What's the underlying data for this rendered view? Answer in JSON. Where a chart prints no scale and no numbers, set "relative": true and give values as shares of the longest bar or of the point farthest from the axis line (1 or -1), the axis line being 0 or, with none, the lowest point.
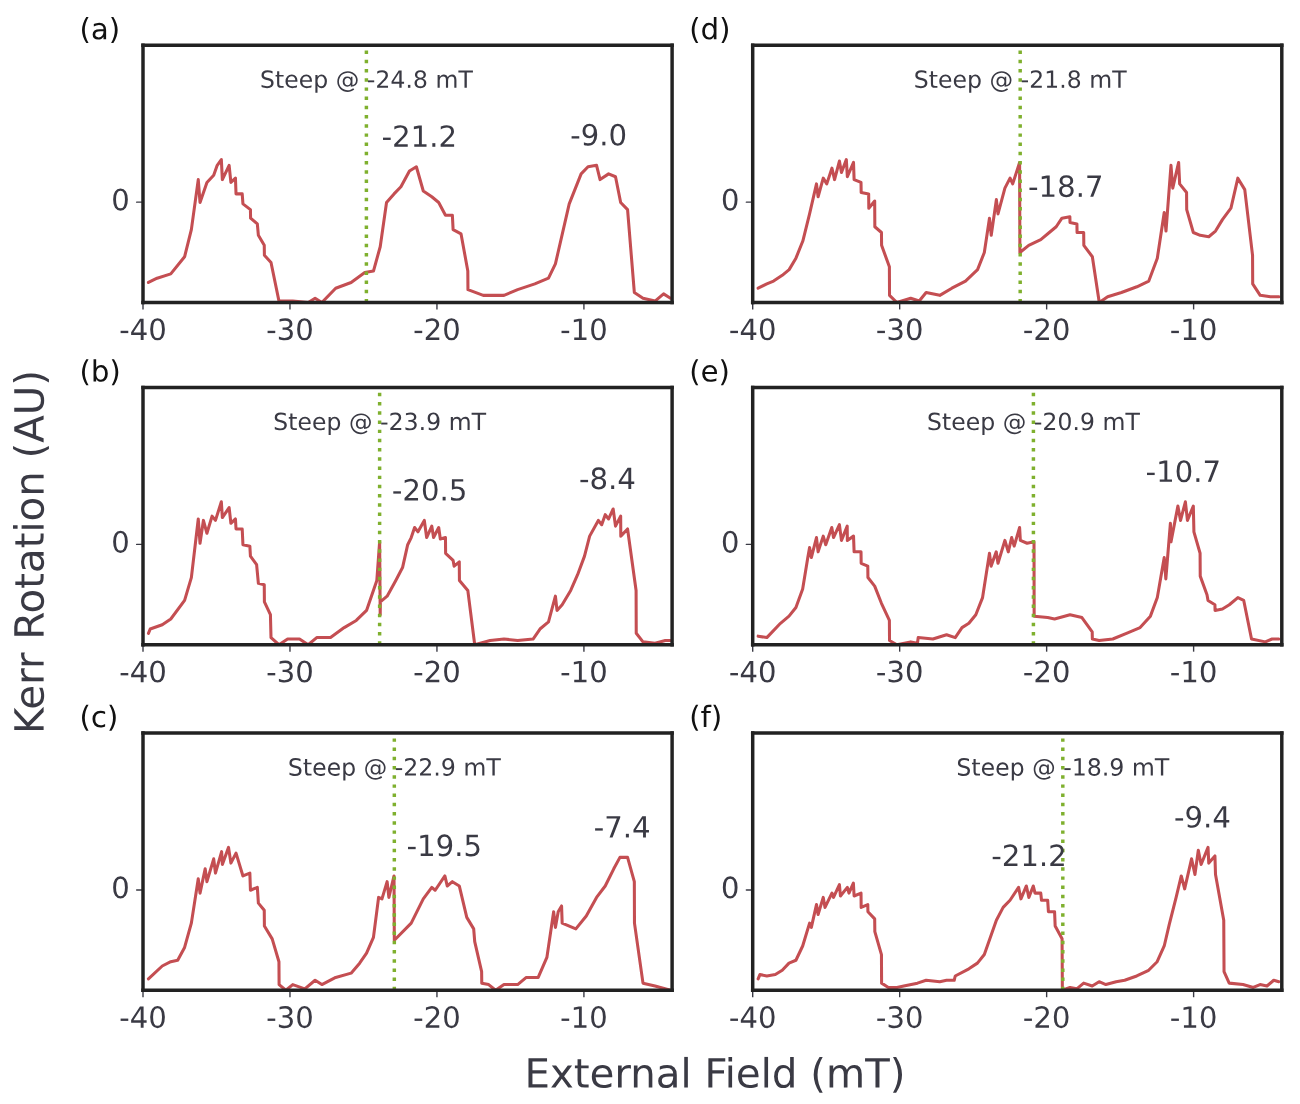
{
  "chart_data": [
    {
      "type": "line",
      "title": "(a)",
      "ylabel": "Kerr Rotation (AU)",
      "xlabel": "External Field (mT)",
      "relative": true,
      "xlim": [
        -40,
        -4
      ],
      "xticks": [
        -40,
        -30,
        -20,
        -10
      ],
      "grid": false,
      "legend": false,
      "ref_lines": [
        {
          "axis": "x",
          "value": -24.8,
          "label": "Steep @ -24.8 mT",
          "color": "#7fb02e",
          "line_style": "dotted"
        }
      ],
      "annotations": [
        "0",
        {
          "text": "-21.2",
          "x": -21.2,
          "y": 0.95
        },
        {
          "text": "-9.0",
          "x": -9.0,
          "y": 0.96
        }
      ],
      "series": [
        {
          "color": "#c44e52",
          "x": [
            -39.63,
            -39.04,
            -38.11,
            -37.17,
            -36.71,
            -36.24,
            -36.12,
            -35.65,
            -35.19,
            -34.95,
            -34.67,
            -34.6,
            -34.14,
            -34.02,
            -33.71,
            -33.67,
            -33.25,
            -33.2,
            -32.69,
            -32.68,
            -32.22,
            -32.15,
            -31.75,
            -31.74,
            -31.29,
            -30.75,
            -29.81,
            -28.76,
            -28.29,
            -27.83,
            -26.89,
            -25.84,
            -24.91,
            -24.32,
            -23.86,
            -23.43,
            -22.92,
            -22.45,
            -21.87,
            -21.4,
            -20.93,
            -20.35,
            -19.88,
            -19.42,
            -18.95,
            -18.9,
            -18.36,
            -17.9,
            -17.89,
            -16.85,
            -15.44,
            -14.51,
            -13.34,
            -12.41,
            -11.94,
            -11.0,
            -10.19,
            -9.72,
            -9.14,
            -8.9,
            -8.32,
            -7.85,
            -7.5,
            -7.03,
            -6.57,
            -5.98,
            -5.16,
            -4.58,
            -4.11
          ],
          "values": [
            0.14,
            0.17,
            0.2,
            0.32,
            0.51,
            0.86,
            0.7,
            0.84,
            0.89,
            0.96,
            1,
            0.86,
            0.96,
            0.84,
            0.87,
            0.76,
            0.76,
            0.69,
            0.65,
            0.59,
            0.55,
            0.47,
            0.4,
            0.33,
            0.28,
            0.01,
            0.01,
            0,
            0.03,
            0,
            0.1,
            0.14,
            0.21,
            0.22,
            0.39,
            0.7,
            0.76,
            0.81,
            0.92,
            0.95,
            0.78,
            0.74,
            0.7,
            0.61,
            0.61,
            0.51,
            0.48,
            0.22,
            0.09,
            0.05,
            0.05,
            0.09,
            0.13,
            0.17,
            0.27,
            0.69,
            0.9,
            0.95,
            0.96,
            0.86,
            0.9,
            0.88,
            0.7,
            0.65,
            0.07,
            0.03,
            0.01,
            0.06,
            0.03
          ]
        }
      ]
    },
    {
      "type": "line",
      "title": "(d)",
      "relative": true,
      "xlim": [
        -40,
        -4
      ],
      "xticks": [
        -40,
        -30,
        -20,
        -10
      ],
      "grid": false,
      "legend": false,
      "ref_lines": [
        {
          "axis": "x",
          "value": -21.8,
          "label": "Steep @ -21.8 mT",
          "color": "#7fb02e",
          "line_style": "dotted"
        }
      ],
      "annotations": [
        "0",
        {
          "text": "-18.7",
          "x": -18.7,
          "y": 0.6
        }
      ],
      "series": [
        {
          "color": "#c44e52",
          "x": [
            -39.63,
            -39.04,
            -38.58,
            -37.99,
            -37.52,
            -37.06,
            -36.59,
            -36.13,
            -35.66,
            -35.55,
            -35.2,
            -34.96,
            -34.61,
            -34.43,
            -34.1,
            -33.96,
            -33.63,
            -33.56,
            -33.14,
            -33.1,
            -32.63,
            -32.62,
            -32.11,
            -32.1,
            -31.7,
            -31.69,
            -31.24,
            -31.23,
            -30.7,
            -30.69,
            -30.19,
            -29.25,
            -28.67,
            -28.2,
            -27.27,
            -26.45,
            -25.52,
            -24.7,
            -24.24,
            -23.89,
            -23.77,
            -23.42,
            -23.31,
            -22.84,
            -22.49,
            -22.31,
            -21.84,
            -21.82,
            -21.22,
            -20.4,
            -19.82,
            -19.35,
            -18.96,
            -18.42,
            -18.41,
            -17.94,
            -17.93,
            -17.48,
            -17.47,
            -16.89,
            -16.42,
            -15.85,
            -14.91,
            -13.86,
            -13.05,
            -12.47,
            -12.0,
            -11.88,
            -11.54,
            -11.42,
            -11.02,
            -10.95,
            -10.48,
            -10.47,
            -10.02,
            -9.55,
            -8.97,
            -8.51,
            -8.04,
            -7.46,
            -6.99,
            -6.52,
            -5.99,
            -5.98,
            -5.47,
            -4.77,
            -4.19
          ],
          "values": [
            0.1,
            0.13,
            0.15,
            0.19,
            0.23,
            0.31,
            0.43,
            0.62,
            0.83,
            0.74,
            0.87,
            0.83,
            0.94,
            0.86,
            0.99,
            0.91,
            1,
            0.88,
            0.98,
            0.86,
            0.84,
            0.77,
            0.76,
            0.66,
            0.71,
            0.53,
            0.49,
            0.4,
            0.25,
            0.05,
            0,
            0.03,
            0.01,
            0.07,
            0.05,
            0.1,
            0.15,
            0.23,
            0.35,
            0.59,
            0.47,
            0.72,
            0.62,
            0.8,
            0.87,
            0.83,
            0.98,
            0.35,
            0.4,
            0.44,
            0.49,
            0.53,
            0.59,
            0.6,
            0.56,
            0.55,
            0.49,
            0.49,
            0.4,
            0.32,
            0,
            0.04,
            0.07,
            0.11,
            0.15,
            0.31,
            0.63,
            0.5,
            0.96,
            0.8,
            0.98,
            0.83,
            0.77,
            0.65,
            0.49,
            0.47,
            0.46,
            0.5,
            0.58,
            0.66,
            0.87,
            0.79,
            0.33,
            0.13,
            0.05,
            0.04,
            0.04
          ]
        }
      ]
    },
    {
      "type": "line",
      "title": "(b)",
      "relative": true,
      "xlim": [
        -40,
        -4
      ],
      "xticks": [
        -40,
        -30,
        -20,
        -10
      ],
      "grid": false,
      "legend": false,
      "ref_lines": [
        {
          "axis": "x",
          "value": -23.9,
          "label": "Steep @ -23.9 mT",
          "color": "#7fb02e",
          "line_style": "dotted"
        }
      ],
      "annotations": [
        "0",
        {
          "text": "-20.5",
          "x": -20.5,
          "y": 0.87
        },
        {
          "text": "-8.4",
          "x": -8.4,
          "y": 0.95
        }
      ],
      "series": [
        {
          "color": "#c44e52",
          "x": [
            -39.63,
            -39.51,
            -38.69,
            -38.11,
            -37.17,
            -36.71,
            -36.24,
            -36.12,
            -35.89,
            -35.65,
            -35.3,
            -35.07,
            -34.67,
            -34.6,
            -34.14,
            -34.02,
            -33.71,
            -33.67,
            -33.25,
            -33.2,
            -32.73,
            -32.69,
            -32.27,
            -32.15,
            -31.75,
            -31.74,
            -31.33,
            -31.29,
            -30.75,
            -30.16,
            -29.35,
            -28.76,
            -28.18,
            -27.24,
            -26.31,
            -25.49,
            -24.79,
            -24.09,
            -23.9,
            -23.86,
            -23.85,
            -23.39,
            -22.8,
            -22.34,
            -21.99,
            -21.75,
            -21.52,
            -21.29,
            -20.86,
            -20.7,
            -20.35,
            -20.23,
            -19.88,
            -19.77,
            -19.42,
            -19.41,
            -18.9,
            -18.83,
            -18.48,
            -18.47,
            -17.9,
            -17.43,
            -16.38,
            -15.44,
            -14.51,
            -13.46,
            -12.99,
            -12.41,
            -11.94,
            -11.83,
            -11.48,
            -10.9,
            -10.43,
            -9.96,
            -9.61,
            -9.02,
            -8.79,
            -8.55,
            -8.32,
            -8.01,
            -7.85,
            -7.5,
            -7.49,
            -7.03,
            -6.45,
            -6.44,
            -5.98,
            -5.16,
            -4.46,
            -4.11
          ],
          "values": [
            0.08,
            0.11,
            0.14,
            0.18,
            0.31,
            0.47,
            0.88,
            0.71,
            0.87,
            0.78,
            0.9,
            0.87,
            1,
            0.89,
            0.96,
            0.85,
            0.88,
            0.81,
            0.81,
            0.7,
            0.69,
            0.62,
            0.56,
            0.43,
            0.42,
            0.3,
            0.21,
            0.05,
            0,
            0.04,
            0.04,
            0,
            0.05,
            0.05,
            0.12,
            0.17,
            0.24,
            0.45,
            0.72,
            0.21,
            0.3,
            0.34,
            0.45,
            0.54,
            0.7,
            0.75,
            0.82,
            0.79,
            0.87,
            0.75,
            0.83,
            0.75,
            0.82,
            0.74,
            0.75,
            0.64,
            0.59,
            0.55,
            0.58,
            0.45,
            0.38,
            0,
            0.03,
            0.04,
            0.03,
            0.04,
            0.11,
            0.16,
            0.34,
            0.24,
            0.28,
            0.38,
            0.49,
            0.62,
            0.76,
            0.87,
            0.84,
            0.91,
            0.88,
            0.95,
            0.83,
            0.9,
            0.76,
            0.81,
            0.38,
            0.08,
            0.02,
            0.01,
            0.03,
            0.03
          ]
        }
      ]
    },
    {
      "type": "line",
      "title": "(e)",
      "relative": true,
      "xlim": [
        -40,
        -4
      ],
      "xticks": [
        -40,
        -30,
        -20,
        -10
      ],
      "grid": false,
      "legend": false,
      "ref_lines": [
        {
          "axis": "x",
          "value": -20.9,
          "label": "Steep @ -20.9 mT",
          "color": "#7fb02e",
          "line_style": "dotted"
        }
      ],
      "annotations": [
        "0",
        {
          "text": "-10.7",
          "x": -10.7,
          "y": 1
        }
      ],
      "series": [
        {
          "color": "#c44e52",
          "x": [
            -39.63,
            -39.04,
            -38.11,
            -37.53,
            -37.06,
            -36.6,
            -36.25,
            -36.13,
            -36.01,
            -35.66,
            -35.55,
            -35.2,
            -35.03,
            -34.62,
            -34.5,
            -34.1,
            -33.96,
            -33.57,
            -33.56,
            -33.14,
            -33.1,
            -32.63,
            -32.62,
            -32.17,
            -32.16,
            -31.7,
            -31.24,
            -30.7,
            -30.69,
            -30.19,
            -29.25,
            -28.79,
            -28.74,
            -27.74,
            -26.81,
            -26.22,
            -25.76,
            -25.29,
            -24.82,
            -24.36,
            -23.89,
            -23.78,
            -23.43,
            -23.31,
            -22.84,
            -22.61,
            -22.38,
            -22.21,
            -21.84,
            -21.79,
            -21.33,
            -20.86,
            -20.85,
            -19.93,
            -19.46,
            -18.41,
            -17.6,
            -16.9,
            -16.89,
            -16.43,
            -15.5,
            -14.57,
            -13.64,
            -12.94,
            -12.47,
            -12.0,
            -11.89,
            -11.58,
            -11.54,
            -11.07,
            -10.89,
            -10.56,
            -10.42,
            -10.02,
            -9.98,
            -9.56,
            -9.55,
            -9.09,
            -9.02,
            -8.55,
            -8.54,
            -8.04,
            -7.57,
            -6.99,
            -6.59,
            -6.06,
            -5.12,
            -4.66,
            -4.2
          ],
          "values": [
            0.06,
            0.05,
            0.15,
            0.2,
            0.26,
            0.39,
            0.61,
            0.68,
            0.61,
            0.75,
            0.65,
            0.76,
            0.7,
            0.82,
            0.75,
            0.84,
            0.73,
            0.83,
            0.73,
            0.76,
            0.65,
            0.65,
            0.57,
            0.55,
            0.47,
            0.41,
            0.29,
            0.17,
            0.03,
            0,
            0.02,
            0.01,
            0.05,
            0.04,
            0.07,
            0.05,
            0.12,
            0.15,
            0.21,
            0.33,
            0.64,
            0.55,
            0.65,
            0.57,
            0.73,
            0.65,
            0.75,
            0.69,
            0.82,
            0.73,
            0.71,
            0.72,
            0.2,
            0.19,
            0.18,
            0.21,
            0.19,
            0.09,
            0.04,
            0.03,
            0.04,
            0.08,
            0.12,
            0.2,
            0.33,
            0.61,
            0.46,
            0.85,
            0.72,
            0.97,
            0.87,
            1,
            0.87,
            0.97,
            0.79,
            0.64,
            0.48,
            0.35,
            0.31,
            0.28,
            0.24,
            0.25,
            0.28,
            0.33,
            0.31,
            0.04,
            0.02,
            0.04,
            0.04
          ]
        }
      ]
    },
    {
      "type": "line",
      "title": "(c)",
      "relative": true,
      "xlim": [
        -40,
        -4
      ],
      "xticks": [
        -40,
        -30,
        -20,
        -10
      ],
      "grid": false,
      "legend": false,
      "ref_lines": [
        {
          "axis": "x",
          "value": -22.9,
          "label": "Steep @ -22.9 mT",
          "color": "#7fb02e",
          "line_style": "dotted"
        }
      ],
      "annotations": [
        "0",
        {
          "text": "-19.5",
          "x": -19.5,
          "y": 0.8
        },
        {
          "text": "-7.4",
          "x": -7.4,
          "y": 0.93
        }
      ],
      "series": [
        {
          "color": "#c44e52",
          "x": [
            -39.63,
            -38.69,
            -38.11,
            -37.64,
            -37.17,
            -36.71,
            -36.24,
            -36.12,
            -35.77,
            -35.65,
            -35.19,
            -35.07,
            -34.65,
            -34.6,
            -34.18,
            -34.02,
            -33.67,
            -33.2,
            -32.73,
            -32.69,
            -32.22,
            -32.15,
            -31.75,
            -31.74,
            -31.21,
            -30.75,
            -30.74,
            -30.28,
            -29.81,
            -28.99,
            -28.29,
            -27.83,
            -26.89,
            -25.84,
            -25.26,
            -24.79,
            -24.32,
            -23.97,
            -23.74,
            -23.39,
            -23.27,
            -22.92,
            -22.9,
            -21.75,
            -20.93,
            -20.35,
            -20.12,
            -19.46,
            -19.3,
            -18.95,
            -18.48,
            -17.97,
            -17.5,
            -17.43,
            -16.96,
            -16.95,
            -16.48,
            -16.01,
            -15.44,
            -14.51,
            -13.92,
            -13.11,
            -12.52,
            -12.06,
            -11.94,
            -11.75,
            -11.52,
            -11.48,
            -10.55,
            -9.84,
            -9.14,
            -8.55,
            -7.97,
            -7.55,
            -7.03,
            -6.57,
            -6.56,
            -5.98,
            -5.16,
            -4.11
          ],
          "values": [
            0.08,
            0.17,
            0.2,
            0.21,
            0.3,
            0.47,
            0.78,
            0.68,
            0.85,
            0.76,
            0.92,
            0.82,
            0.97,
            0.88,
            1,
            0.89,
            0.96,
            0.8,
            0.82,
            0.7,
            0.72,
            0.61,
            0.56,
            0.45,
            0.36,
            0.2,
            0.04,
            0,
            0.04,
            0.01,
            0.07,
            0.04,
            0.09,
            0.12,
            0.19,
            0.26,
            0.37,
            0.65,
            0.64,
            0.76,
            0.65,
            0.8,
            0.35,
            0.47,
            0.64,
            0.72,
            0.7,
            0.8,
            0.73,
            0.76,
            0.73,
            0.51,
            0.43,
            0.34,
            0.13,
            0.05,
            0.04,
            0,
            0.04,
            0.04,
            0.09,
            0.09,
            0.23,
            0.55,
            0.44,
            0.55,
            0.59,
            0.47,
            0.43,
            0.52,
            0.65,
            0.73,
            0.85,
            0.93,
            0.93,
            0.76,
            0.47,
            0.05,
            0.03,
            0
          ]
        }
      ]
    },
    {
      "type": "line",
      "title": "(f)",
      "relative": true,
      "xlim": [
        -40,
        -4
      ],
      "xticks": [
        -40,
        -30,
        -20,
        -10
      ],
      "grid": false,
      "legend": false,
      "ref_lines": [
        {
          "axis": "x",
          "value": -18.9,
          "label": "Steep @ -18.9 mT",
          "color": "#7fb02e",
          "line_style": "dotted"
        }
      ],
      "annotations": [
        "0",
        {
          "text": "-21.2",
          "x": -21.2,
          "y": 0.73
        },
        {
          "text": "-9.4",
          "x": -9.4,
          "y": 1
        }
      ],
      "series": [
        {
          "color": "#c44e52",
          "x": [
            -39.63,
            -39.51,
            -39.04,
            -38.46,
            -37.99,
            -37.53,
            -37.06,
            -36.6,
            -36.13,
            -36.01,
            -35.66,
            -35.55,
            -35.2,
            -35.08,
            -34.61,
            -34.5,
            -34.1,
            -34.03,
            -33.56,
            -33.45,
            -33.15,
            -33.1,
            -32.63,
            -32.62,
            -32.17,
            -32.16,
            -31.7,
            -31.69,
            -31.24,
            -31.23,
            -30.77,
            -30.19,
            -29.72,
            -28.79,
            -28.2,
            -27.27,
            -26.81,
            -26.29,
            -26.22,
            -25.29,
            -24.71,
            -24.24,
            -23.42,
            -22.96,
            -22.49,
            -21.91,
            -21.75,
            -21.38,
            -21.21,
            -20.91,
            -20.79,
            -20.4,
            -20.35,
            -19.93,
            -19.88,
            -19.46,
            -19.42,
            -18.95,
            -18.93,
            -18.41,
            -17.95,
            -17.48,
            -16.9,
            -16.43,
            -15.97,
            -15.27,
            -14.69,
            -13.87,
            -13.06,
            -12.48,
            -12.0,
            -11.66,
            -11.19,
            -10.84,
            -10.61,
            -10.14,
            -9.91,
            -9.68,
            -9.49,
            -9.02,
            -8.97,
            -8.55,
            -8.51,
            -7.95,
            -7.93,
            -7.58,
            -6.64,
            -5.94,
            -5.48,
            -5.01,
            -4.55,
            -4.2
          ],
          "values": [
            0.08,
            0.11,
            0.1,
            0.11,
            0.14,
            0.19,
            0.21,
            0.31,
            0.47,
            0.44,
            0.6,
            0.53,
            0.65,
            0.58,
            0.68,
            0.65,
            0.74,
            0.66,
            0.72,
            0.68,
            0.75,
            0.66,
            0.68,
            0.58,
            0.6,
            0.55,
            0.5,
            0.41,
            0.25,
            0.05,
            0.02,
            0.02,
            0.03,
            0.05,
            0.07,
            0.06,
            0.07,
            0.07,
            0.1,
            0.15,
            0.19,
            0.25,
            0.49,
            0.58,
            0.63,
            0.72,
            0.64,
            0.73,
            0.65,
            0.73,
            0.68,
            0.68,
            0.63,
            0.63,
            0.55,
            0.55,
            0.45,
            0.36,
            0,
            0.02,
            0.01,
            0.05,
            0.03,
            0.06,
            0.04,
            0.06,
            0.07,
            0.1,
            0.14,
            0.2,
            0.31,
            0.46,
            0.65,
            0.8,
            0.71,
            0.92,
            0.81,
            0.98,
            0.88,
            1,
            0.89,
            0.94,
            0.81,
            0.49,
            0.13,
            0.05,
            0.04,
            0.02,
            0.04,
            0.03,
            0.07,
            0.06
          ]
        }
      ]
    }
  ]
}
